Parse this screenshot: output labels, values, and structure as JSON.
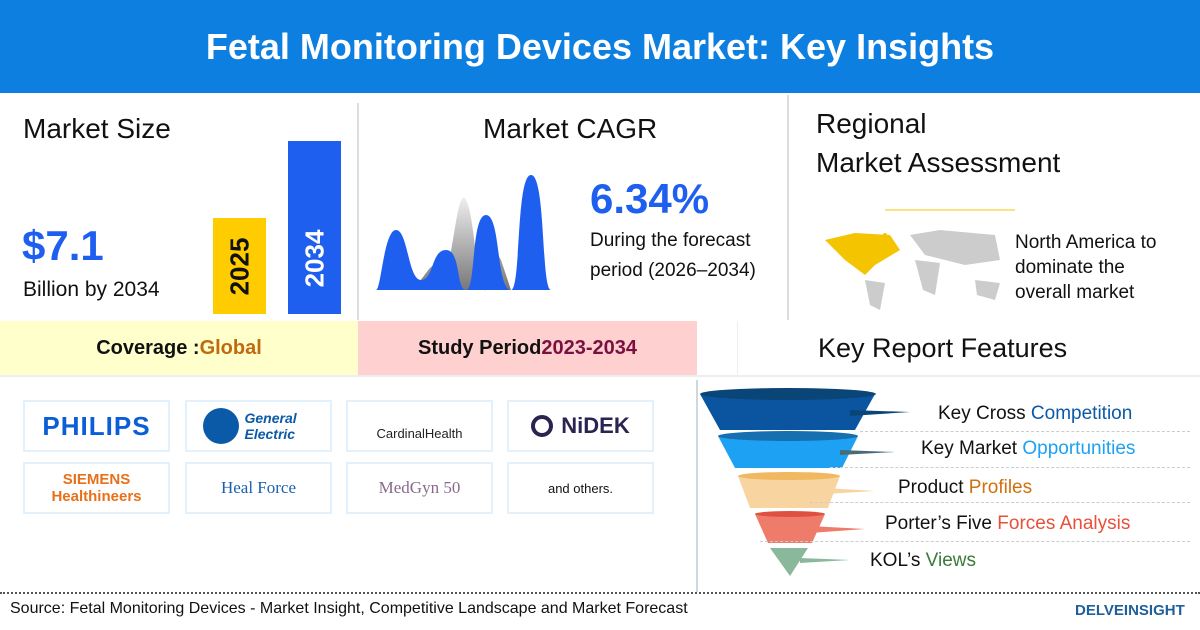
{
  "header": {
    "title": "Fetal Monitoring Devices Market: Key Insights"
  },
  "market_size": {
    "title": "Market Size",
    "value": "$7.1",
    "unit": "Billion by 2034",
    "bars": [
      {
        "label": "2025",
        "color": "#ffcc00"
      },
      {
        "label": "2034",
        "color": "#1f5ff0"
      }
    ]
  },
  "cagr": {
    "title": "Market CAGR",
    "value": "6.34%",
    "desc_line1": "During the forecast",
    "desc_line2": "period (2026–2034)"
  },
  "regional": {
    "title_line1": "Regional",
    "title_line2": "Market Assessment",
    "text_line1": "North America to",
    "text_line2": "dominate the",
    "text_line3": "overall market"
  },
  "coverage": {
    "label": "Coverage : ",
    "value": "Global"
  },
  "study": {
    "label": "Study Period ",
    "value": "2023-2034"
  },
  "features": {
    "title": "Key Report Features",
    "items": [
      {
        "a": "Key Cross ",
        "b": "Competition",
        "color": "#0b5aa8"
      },
      {
        "a": "Key Market ",
        "b": "Opportunities",
        "color": "#1da1f2"
      },
      {
        "a": "Product ",
        "b": "Profiles",
        "color": "#d0700f"
      },
      {
        "a": "Porter’s Five ",
        "b": "Forces Analysis",
        "color": "#e8503a"
      },
      {
        "a": "KOL’s ",
        "b": "Views",
        "color": "#3a7a3a"
      }
    ]
  },
  "companies": [
    "PHILIPS",
    "General Electric",
    "CardinalHealth",
    "NiDEK",
    "SIEMENS Healthineers",
    "Heal Force",
    "MedGyn 50",
    "and others."
  ],
  "footer": {
    "source": "Source: Fetal Monitoring Devices - Market Insight, Competitive Landscape and Market Forecast",
    "brand": "DELVEINSIGHT"
  }
}
